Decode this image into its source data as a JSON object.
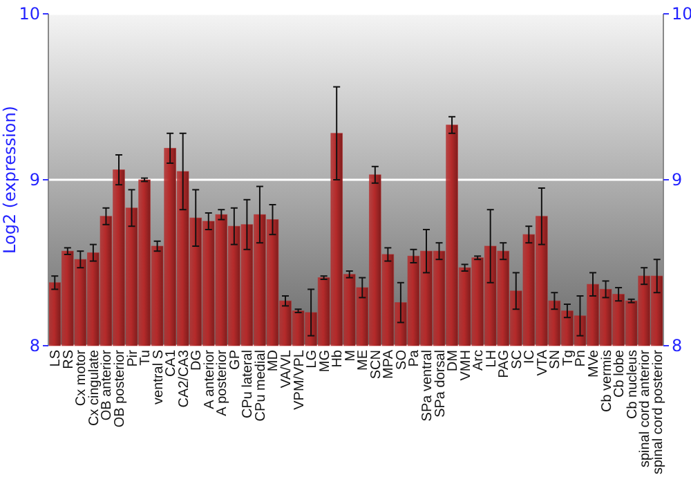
{
  "chart_data": {
    "type": "bar",
    "ylabel": "Log2 (expression)",
    "categories": [
      "LS",
      "RS",
      "Cx motor",
      "Cx cingulate",
      "OB anterior",
      "OB posterior",
      "Pir",
      "Tu",
      "ventral S",
      "CA1",
      "CA2/CA3",
      "DG",
      "A anterior",
      "A posterior",
      "GP",
      "CPu lateral",
      "CPu medial",
      "MD",
      "VA/VL",
      "VPM/VPL",
      "LG",
      "MG",
      "Hb",
      "M",
      "ME",
      "SCN",
      "MPA",
      "SO",
      "Pa",
      "SPa ventral",
      "SPa dorsal",
      "DM",
      "VMH",
      "Arc",
      "LH",
      "PAG",
      "SC",
      "IC",
      "VTA",
      "SN",
      "Tg",
      "Pn",
      "MVe",
      "Cb vermis",
      "Cb lobe",
      "Cb nucleus",
      "spinal cord anterior",
      "spinal cord posterior"
    ],
    "values": [
      8.38,
      8.57,
      8.52,
      8.56,
      8.78,
      9.06,
      8.83,
      9.0,
      8.6,
      9.19,
      9.05,
      8.77,
      8.75,
      8.79,
      8.72,
      8.73,
      8.79,
      8.76,
      8.27,
      8.21,
      8.2,
      8.41,
      9.28,
      8.43,
      8.35,
      9.03,
      8.55,
      8.26,
      8.54,
      8.57,
      8.57,
      9.33,
      8.47,
      8.53,
      8.6,
      8.57,
      8.33,
      8.67,
      8.78,
      8.27,
      8.21,
      8.18,
      8.37,
      8.34,
      8.31,
      8.27,
      8.42,
      8.42
    ],
    "errors": [
      0.04,
      0.02,
      0.05,
      0.05,
      0.05,
      0.09,
      0.11,
      0.01,
      0.03,
      0.09,
      0.23,
      0.17,
      0.05,
      0.03,
      0.11,
      0.15,
      0.17,
      0.09,
      0.03,
      0.01,
      0.14,
      0.01,
      0.28,
      0.02,
      0.06,
      0.05,
      0.04,
      0.12,
      0.04,
      0.13,
      0.05,
      0.05,
      0.02,
      0.01,
      0.22,
      0.05,
      0.11,
      0.05,
      0.17,
      0.05,
      0.04,
      0.12,
      0.07,
      0.05,
      0.04,
      0.01,
      0.05,
      0.1
    ],
    "color": "#b52a2a",
    "ylim": [
      8,
      10
    ],
    "yticks": [
      8,
      9,
      10
    ],
    "y2lim": [
      8,
      10
    ],
    "y2ticks": [
      8,
      9,
      10
    ],
    "grid": "y"
  }
}
